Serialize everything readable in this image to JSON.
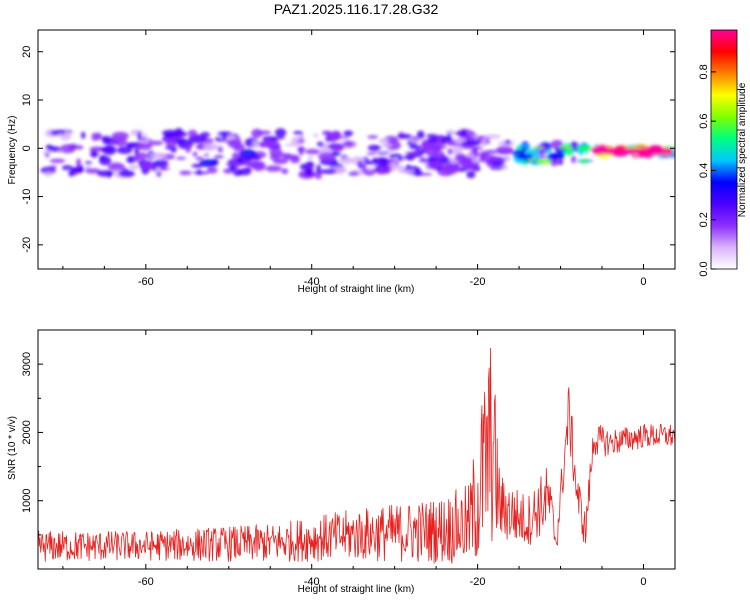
{
  "page": {
    "title": "PAZ1.2025.116.17.28.G32"
  },
  "chart_data": [
    {
      "type": "heatmap",
      "title": "PAZ1.2025.116.17.28.G32",
      "xlabel": "Height of straight line (km)",
      "ylabel": "Frequency (Hz)",
      "xlim": [
        -73,
        3.8
      ],
      "ylim": [
        -25,
        24.5
      ],
      "x_ticks": [
        -60,
        -40,
        -20,
        0
      ],
      "y_ticks": [
        -20,
        -10,
        0,
        10,
        20
      ],
      "colorbar": {
        "label": "Normalized spectral amplitude",
        "range": [
          0,
          0.97
        ],
        "ticks": [
          0.0,
          0.2,
          0.4,
          0.6,
          0.8
        ],
        "tick_labels": [
          "0.0",
          "0.2",
          "0.4",
          "0.6",
          "0.8"
        ],
        "colormap": [
          "#ffffff",
          "#d9b3ff",
          "#8c2eff",
          "#4b00ff",
          "#0000ff",
          "#00c8ff",
          "#00ff7f",
          "#7fff00",
          "#ffff00",
          "#ff8000",
          "#ff0000",
          "#ff0099"
        ]
      },
      "bands": [
        {
          "x_from": -72,
          "x_to": -20,
          "freq_center": -1.0,
          "freq_halfwidth": 4.5,
          "amplitude": 0.25
        },
        {
          "x_from": -28,
          "x_to": -16,
          "freq_center": -1.0,
          "freq_halfwidth": 3.5,
          "amplitude": 0.22
        },
        {
          "x_from": -15,
          "x_to": -7,
          "freq_center": -1.0,
          "freq_halfwidth": 2.0,
          "amplitude": 0.5
        },
        {
          "x_from": -6,
          "x_to": 3.5,
          "freq_center": -0.6,
          "freq_halfwidth": 0.6,
          "amplitude": 0.95
        }
      ]
    },
    {
      "type": "line",
      "xlabel": "Height of straight line (km)",
      "ylabel": "SNR (10 * v/v)",
      "xlim": [
        -73,
        3.8
      ],
      "ylim": [
        0,
        3500
      ],
      "x_ticks": [
        -60,
        -40,
        -20,
        0
      ],
      "y_ticks": [
        1000,
        2000,
        3000
      ],
      "line_color": "#e8211f",
      "x_step": 0.08,
      "envelope": [
        {
          "x": -73,
          "mean": 330,
          "amp": 230
        },
        {
          "x": -60,
          "mean": 340,
          "amp": 220
        },
        {
          "x": -45,
          "mean": 380,
          "amp": 280
        },
        {
          "x": -35,
          "mean": 500,
          "amp": 380
        },
        {
          "x": -25,
          "mean": 560,
          "amp": 480
        },
        {
          "x": -21,
          "mean": 650,
          "amp": 600
        },
        {
          "x": -19.5,
          "mean": 1300,
          "amp": 1300
        },
        {
          "x": -18.3,
          "mean": 1900,
          "amp": 1600
        },
        {
          "x": -17.3,
          "mean": 900,
          "amp": 500
        },
        {
          "x": -14,
          "mean": 700,
          "amp": 380
        },
        {
          "x": -11.5,
          "mean": 1050,
          "amp": 500
        },
        {
          "x": -10.5,
          "mean": 400,
          "amp": 220
        },
        {
          "x": -9,
          "mean": 2300,
          "amp": 450
        },
        {
          "x": -8,
          "mean": 1100,
          "amp": 350
        },
        {
          "x": -7,
          "mean": 550,
          "amp": 280
        },
        {
          "x": -6,
          "mean": 1900,
          "amp": 250
        },
        {
          "x": -4,
          "mean": 1850,
          "amp": 200
        },
        {
          "x": 0,
          "mean": 1950,
          "amp": 180
        },
        {
          "x": 3.8,
          "mean": 1950,
          "amp": 180
        }
      ]
    }
  ]
}
